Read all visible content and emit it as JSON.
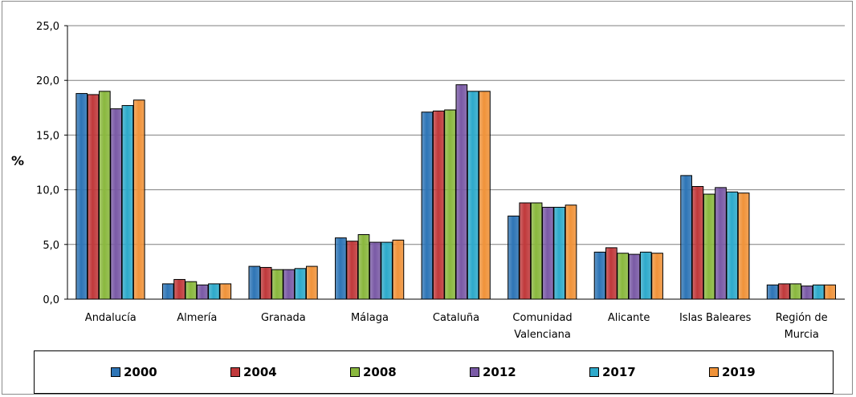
{
  "chart_data": {
    "type": "bar",
    "ylabel": "%",
    "ylim": [
      0,
      25
    ],
    "yticks": [
      "0,0",
      "5,0",
      "10,0",
      "15,0",
      "20,0",
      "25,0"
    ],
    "grid": true,
    "legend_position": "bottom",
    "categories": [
      [
        "Andalucía"
      ],
      [
        "Almería"
      ],
      [
        "Granada"
      ],
      [
        "Málaga"
      ],
      [
        "Cataluña"
      ],
      [
        "Comunidad",
        "Valenciana"
      ],
      [
        "Alicante"
      ],
      [
        "Islas Baleares"
      ],
      [
        "Región de",
        "Murcia"
      ]
    ],
    "series": [
      {
        "name": "2000",
        "color": "#2e75b6",
        "values": [
          18.8,
          1.4,
          3.0,
          5.6,
          17.1,
          7.6,
          4.3,
          11.3,
          1.3
        ]
      },
      {
        "name": "2004",
        "color": "#c0393b",
        "values": [
          18.7,
          1.8,
          2.9,
          5.3,
          17.2,
          8.8,
          4.7,
          10.3,
          1.4
        ]
      },
      {
        "name": "2008",
        "color": "#8ab83e",
        "values": [
          19.0,
          1.6,
          2.7,
          5.9,
          17.3,
          8.8,
          4.2,
          9.6,
          1.4
        ]
      },
      {
        "name": "2012",
        "color": "#7a5aa6",
        "values": [
          17.4,
          1.3,
          2.7,
          5.2,
          19.6,
          8.4,
          4.1,
          10.2,
          1.2
        ]
      },
      {
        "name": "2017",
        "color": "#2eaacb",
        "values": [
          17.7,
          1.4,
          2.8,
          5.2,
          19.0,
          8.4,
          4.3,
          9.8,
          1.3
        ]
      },
      {
        "name": "2019",
        "color": "#f0933a",
        "values": [
          18.2,
          1.4,
          3.0,
          5.4,
          19.0,
          8.6,
          4.2,
          9.7,
          1.3
        ]
      }
    ]
  }
}
